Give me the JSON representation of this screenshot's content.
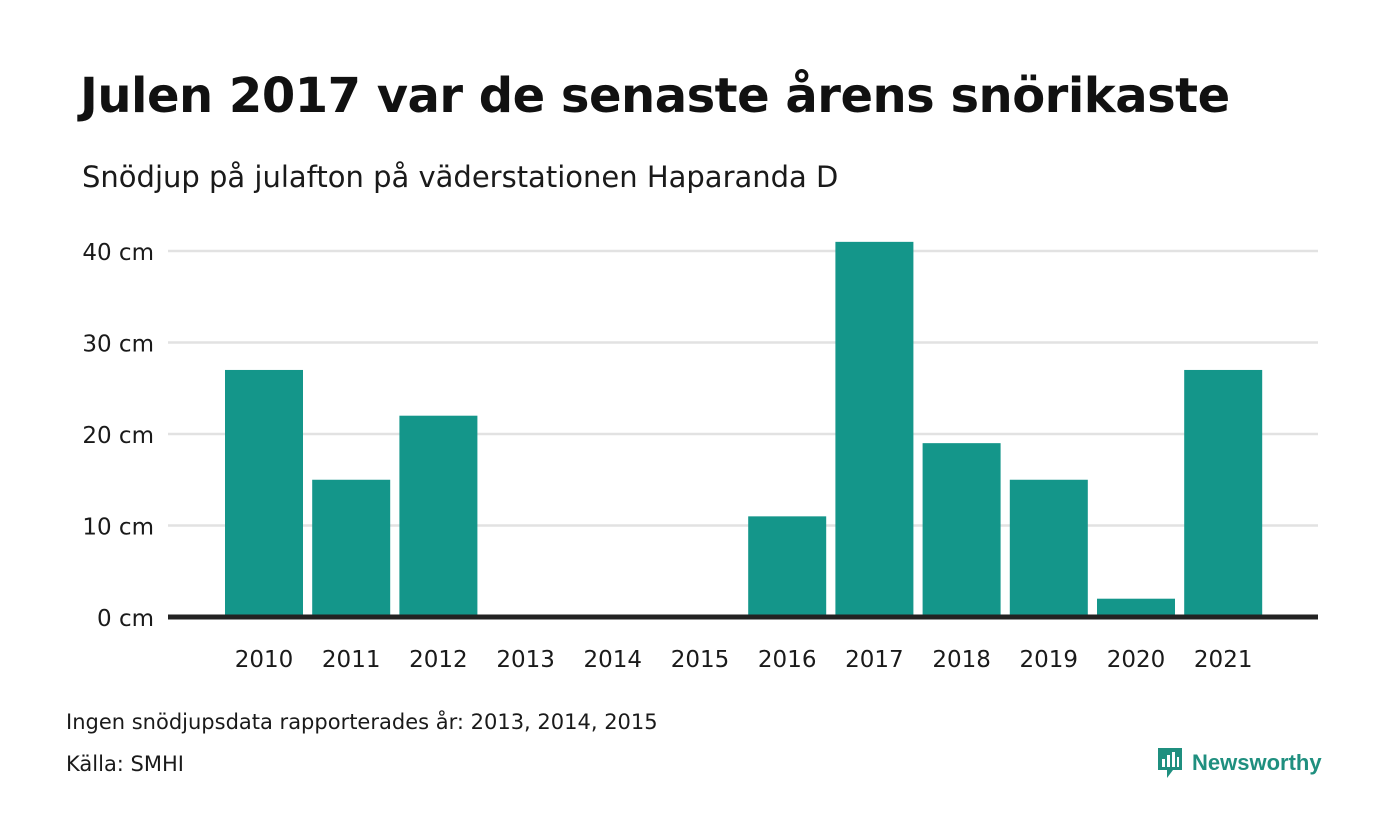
{
  "header": {
    "title": "Julen 2017 var de senaste årens snörikaste",
    "subtitle": "Snödjup på julafton på väderstationen Haparanda D"
  },
  "chart_data": {
    "type": "bar",
    "categories": [
      "2010",
      "2011",
      "2012",
      "2013",
      "2014",
      "2015",
      "2016",
      "2017",
      "2018",
      "2019",
      "2020",
      "2021"
    ],
    "values": [
      27,
      15,
      22,
      null,
      null,
      null,
      11,
      41,
      19,
      15,
      2,
      27
    ],
    "y_ticks": [
      "0 cm",
      "10 cm",
      "20 cm",
      "30 cm",
      "40 cm"
    ],
    "y_tick_values": [
      0,
      10,
      20,
      30,
      40
    ],
    "ylim": [
      0,
      40
    ],
    "grid": true,
    "bar_color": "#14968a",
    "grid_color": "#e2e2e2",
    "axis_color": "#222222"
  },
  "footer": {
    "note": "Ingen snödjupsdata rapporterades år: 2013, 2014, 2015",
    "source": "Källa: SMHI",
    "brand": "Newsworthy",
    "brand_icon": "newsworthy-logo-icon",
    "brand_color": "#1f8f7f"
  }
}
